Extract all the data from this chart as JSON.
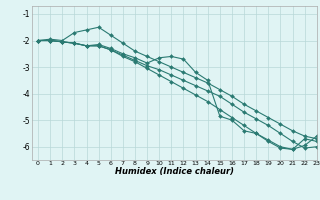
{
  "xlabel": "Humidex (Indice chaleur)",
  "bg_color": "#e0f4f4",
  "grid_color": "#b8d8d8",
  "line_color": "#2a7a72",
  "xlim": [
    -0.5,
    23
  ],
  "ylim": [
    -6.5,
    -0.7
  ],
  "yticks": [
    -6,
    -5,
    -4,
    -3,
    -2,
    -1
  ],
  "xticks": [
    0,
    1,
    2,
    3,
    4,
    5,
    6,
    7,
    8,
    9,
    10,
    11,
    12,
    13,
    14,
    15,
    16,
    17,
    18,
    19,
    20,
    21,
    22,
    23
  ],
  "line1_x": [
    0,
    1,
    2,
    3,
    4,
    5,
    6,
    7,
    8,
    9,
    10,
    11,
    12,
    13,
    14,
    15,
    16,
    17,
    18,
    19,
    20,
    21,
    22,
    23
  ],
  "line1_y": [
    -2.0,
    -1.95,
    -2.0,
    -1.7,
    -1.6,
    -1.5,
    -1.8,
    -2.1,
    -2.4,
    -2.6,
    -2.8,
    -3.0,
    -3.2,
    -3.4,
    -3.6,
    -3.85,
    -4.1,
    -4.4,
    -4.65,
    -4.9,
    -5.15,
    -5.4,
    -5.6,
    -5.7
  ],
  "line2_x": [
    0,
    1,
    2,
    3,
    4,
    5,
    6,
    7,
    8,
    9,
    10,
    11,
    12,
    13,
    14,
    15,
    16,
    17,
    18,
    19,
    20,
    21,
    22,
    23
  ],
  "line2_y": [
    -2.0,
    -2.0,
    -2.05,
    -2.1,
    -2.2,
    -2.2,
    -2.35,
    -2.55,
    -2.75,
    -2.95,
    -3.1,
    -3.3,
    -3.5,
    -3.7,
    -3.9,
    -4.1,
    -4.4,
    -4.7,
    -4.95,
    -5.2,
    -5.5,
    -5.8,
    -6.05,
    -6.0
  ],
  "line3_x": [
    0,
    1,
    2,
    3,
    4,
    5,
    6,
    7,
    8,
    9,
    10,
    11,
    12,
    13,
    14,
    15,
    16,
    17,
    18,
    19,
    20,
    21,
    22,
    23
  ],
  "line3_y": [
    -2.0,
    -2.0,
    -2.05,
    -2.1,
    -2.2,
    -2.15,
    -2.3,
    -2.5,
    -2.65,
    -2.85,
    -2.65,
    -2.6,
    -2.7,
    -3.2,
    -3.5,
    -4.85,
    -5.0,
    -5.4,
    -5.5,
    -5.8,
    -6.05,
    -6.1,
    -5.7,
    -5.8
  ],
  "line4_x": [
    0,
    1,
    2,
    3,
    4,
    5,
    6,
    7,
    8,
    9,
    10,
    11,
    12,
    13,
    14,
    15,
    16,
    17,
    18,
    19,
    20,
    21,
    22,
    23
  ],
  "line4_y": [
    -2.0,
    -2.0,
    -2.05,
    -2.1,
    -2.2,
    -2.2,
    -2.35,
    -2.6,
    -2.8,
    -3.05,
    -3.3,
    -3.55,
    -3.8,
    -4.05,
    -4.3,
    -4.6,
    -4.9,
    -5.2,
    -5.5,
    -5.75,
    -6.0,
    -6.1,
    -5.95,
    -5.6
  ]
}
